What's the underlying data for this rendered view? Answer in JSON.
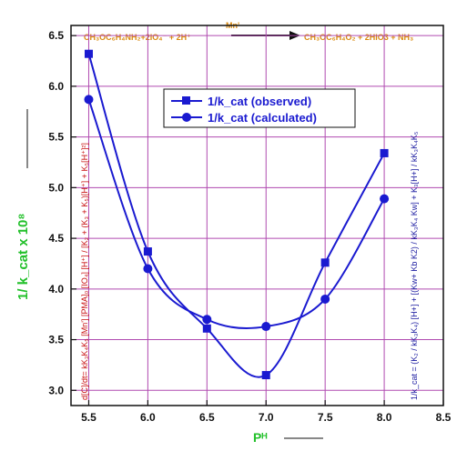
{
  "reaction": {
    "catalyst": "Mn'",
    "reactants": "CH₃OC₆H₄NH₂+2IO₄⁻ + 2H⁺",
    "products": "CH₃OC₆H₄O₂ + 2HIO3 + NH₃"
  },
  "equations": {
    "left": "d[C]/dt= kK₃K₄K₅ [Mn'] [PMA]₀ [IO₄] [H⁺] / [K₂ + (K₃ + K₅)[H⁺] + K₅[H⁺]²]",
    "right": "1/k_cat = (K₂ / kK₃K₄) [H+] + [(Kw+ Kb K2) / kK₃K₄ Kw] + K₃[H+] / kK₃K₄K₅"
  },
  "chart_data": {
    "type": "line",
    "title": "",
    "xlabel": "Pᴴ",
    "ylabel": "1/ k_cat x 10⁸",
    "xlim": [
      5.35,
      8.5
    ],
    "ylim": [
      2.85,
      6.6
    ],
    "xticks": [
      5.5,
      6.0,
      6.5,
      7.0,
      7.5,
      8.0,
      8.5
    ],
    "yticks": [
      3.0,
      3.5,
      4.0,
      4.5,
      5.0,
      5.5,
      6.0,
      6.5
    ],
    "grid": true,
    "legend_position": "top-center",
    "x": [
      5.5,
      6.0,
      6.5,
      7.0,
      7.5,
      8.0
    ],
    "series": [
      {
        "name": "1/k_cat (observed)",
        "marker": "square",
        "color": "#1a1ad0",
        "values": [
          6.32,
          4.37,
          3.61,
          3.15,
          4.26,
          5.34
        ]
      },
      {
        "name": "1/k_cat (calculated)",
        "marker": "circle",
        "color": "#1a1ad0",
        "values": [
          5.87,
          4.2,
          3.7,
          3.63,
          3.9,
          4.89
        ]
      }
    ],
    "colors": {
      "grid": "#b04ab0",
      "series": "#1a1ad0",
      "axis_title": "#22c02a",
      "equation": "#c81010",
      "reaction": "#d98a10"
    }
  }
}
